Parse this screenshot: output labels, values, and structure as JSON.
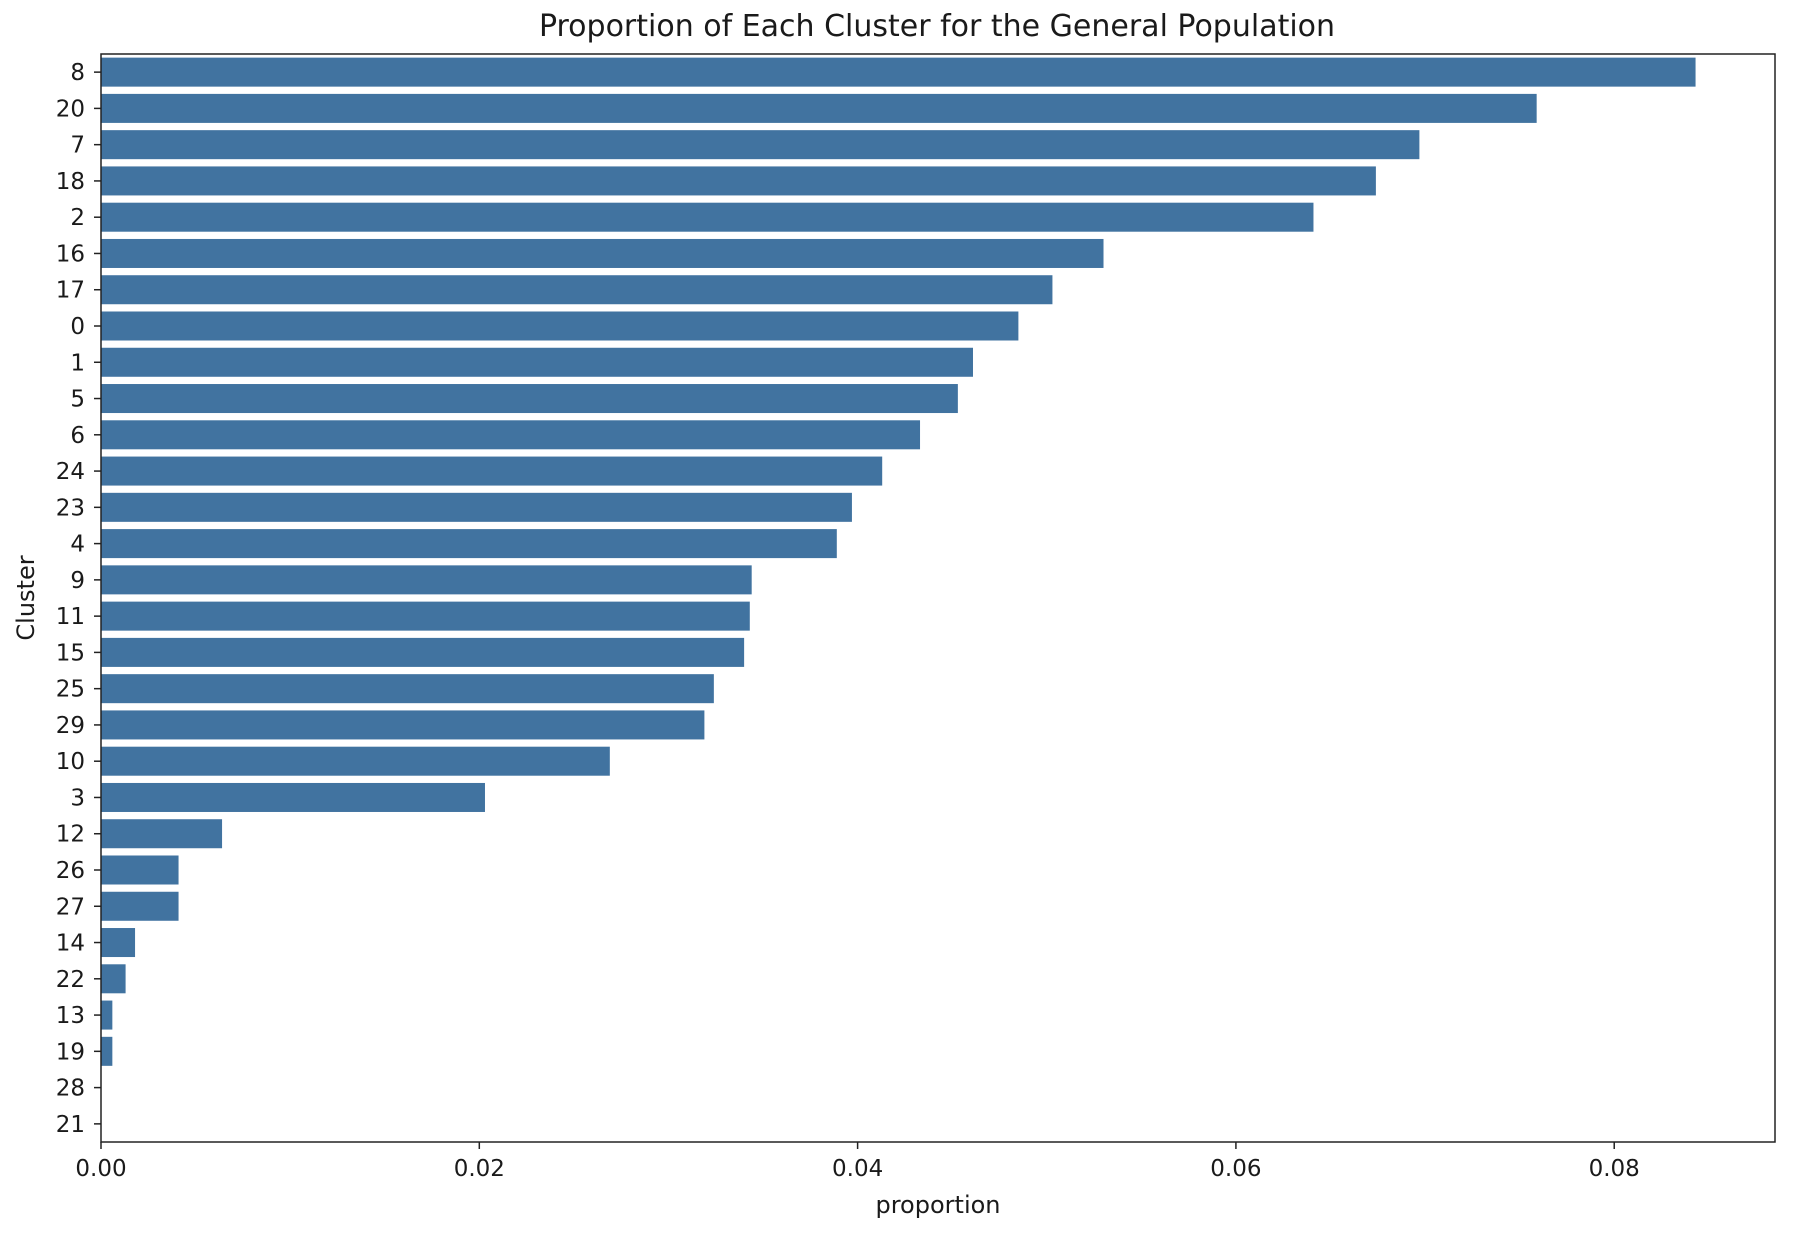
{
  "chart_data": {
    "type": "bar",
    "orientation": "horizontal",
    "title": "Proportion of Each Cluster for the General Population",
    "xlabel": "proportion",
    "ylabel": "Cluster",
    "xlim": [
      0,
      0.0885
    ],
    "xticks": [
      "0.00",
      "0.02",
      "0.04",
      "0.06",
      "0.08"
    ],
    "grid": false,
    "bar_color": "#4173a0",
    "categories": [
      "8",
      "20",
      "7",
      "18",
      "2",
      "16",
      "17",
      "0",
      "1",
      "5",
      "6",
      "24",
      "23",
      "4",
      "9",
      "11",
      "15",
      "25",
      "29",
      "10",
      "3",
      "12",
      "26",
      "27",
      "14",
      "22",
      "13",
      "19",
      "28",
      "21"
    ],
    "values": [
      0.0843,
      0.0759,
      0.0697,
      0.0674,
      0.0641,
      0.053,
      0.0503,
      0.0485,
      0.0461,
      0.0453,
      0.0433,
      0.0413,
      0.0397,
      0.0389,
      0.0344,
      0.0343,
      0.034,
      0.0324,
      0.0319,
      0.0269,
      0.0203,
      0.0064,
      0.0041,
      0.0041,
      0.0018,
      0.0013,
      0.0006,
      0.0006,
      0.0,
      0.0
    ]
  }
}
